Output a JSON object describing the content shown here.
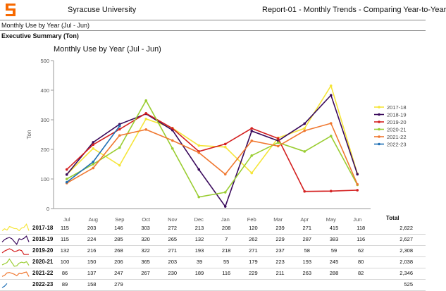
{
  "header": {
    "org_name": "Syracuse University",
    "report_title": "Report-01 - Monthly Trends - Comparing Year-to-Year",
    "logo_color": "#f76900"
  },
  "subtitle": "Monthly Use by Year (Jul - Jun)",
  "section_title": "Executive Summary  (Ton)",
  "table": {
    "total_label": "Total"
  },
  "chart_data": {
    "type": "line",
    "title": "Monthly Use by Year (Jul - Jun)",
    "xlabel": "",
    "ylabel": "Ton",
    "ylim": [
      0,
      500
    ],
    "yticks": [
      0,
      100,
      200,
      300,
      400,
      500
    ],
    "grid": false,
    "legend_position": "right",
    "categories": [
      "Jul",
      "Aug",
      "Sep",
      "Oct",
      "Nov",
      "Dec",
      "Jan",
      "Feb",
      "Mar",
      "Apr",
      "May",
      "Jun"
    ],
    "series": [
      {
        "name": "2017-18",
        "color": "#f5e53a",
        "values": [
          115,
          203,
          146,
          303,
          272,
          213,
          208,
          120,
          239,
          271,
          415,
          118
        ],
        "total": "2,622"
      },
      {
        "name": "2018-19",
        "color": "#3a0a5c",
        "values": [
          115,
          224,
          285,
          320,
          265,
          132,
          7,
          262,
          229,
          287,
          383,
          116
        ],
        "total": "2,627"
      },
      {
        "name": "2019-20",
        "color": "#d42020",
        "values": [
          132,
          216,
          268,
          322,
          271,
          193,
          218,
          271,
          237,
          58,
          59,
          62
        ],
        "total": "2,308"
      },
      {
        "name": "2020-21",
        "color": "#9acd32",
        "values": [
          100,
          150,
          206,
          365,
          203,
          39,
          55,
          179,
          223,
          193,
          245,
          80
        ],
        "total": "2,038"
      },
      {
        "name": "2021-22",
        "color": "#f07830",
        "values": [
          86,
          137,
          247,
          267,
          230,
          189,
          116,
          229,
          211,
          263,
          288,
          82
        ],
        "total": "2,346"
      },
      {
        "name": "2022-23",
        "color": "#1f6fb5",
        "values": [
          89,
          158,
          279,
          null,
          null,
          null,
          null,
          null,
          null,
          null,
          null,
          null
        ],
        "total": "525"
      }
    ]
  }
}
